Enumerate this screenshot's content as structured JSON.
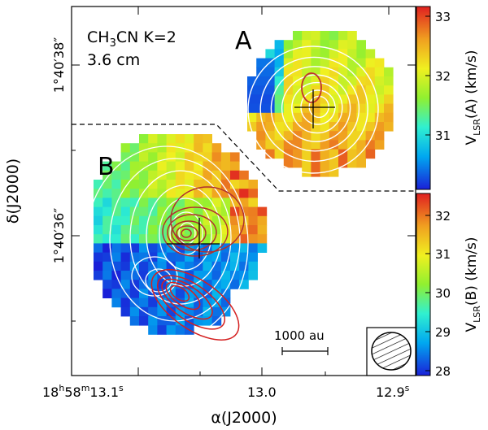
{
  "chart_data": {
    "type": "heatmap",
    "title": "",
    "molecule": {
      "base": "CH",
      "sub": "3",
      "rest": "CN K=2"
    },
    "continuum_label": "3.6 cm",
    "continuum_color": "#d42020",
    "contour_color_line": "#ffffff",
    "xlabel": "α(J2000)",
    "ylabel": "δ(J2000)",
    "x_ticks": [
      {
        "base": "18",
        "sup1": "h",
        "mid": "58",
        "sup2": "m",
        "end": "13.1",
        "sup3": "s"
      },
      {
        "label": "13.0"
      },
      {
        "label": "12.9",
        "sup": "s"
      }
    ],
    "y_ticks": [
      "1°40′38″",
      "1°40′36″"
    ],
    "regions": [
      {
        "name": "A",
        "vlsr_range": [
          30.2,
          33.2
        ]
      },
      {
        "name": "B",
        "vlsr_range": [
          28,
          32.5
        ]
      }
    ],
    "colorbars": [
      {
        "label": "V",
        "sub": "LSR",
        "rest": "(A) (km/s)",
        "ticks": [
          "33",
          "32",
          "31"
        ]
      },
      {
        "label": "V",
        "sub": "LSR",
        "rest": "(B) (km/s)",
        "ticks": [
          "32",
          "31",
          "30",
          "29",
          "28"
        ]
      }
    ],
    "scale_bar": "1000 au",
    "colormap": [
      "#1a20d8",
      "#00a8f0",
      "#30f0d0",
      "#90f030",
      "#f0f020",
      "#f0a020",
      "#e02020"
    ]
  }
}
